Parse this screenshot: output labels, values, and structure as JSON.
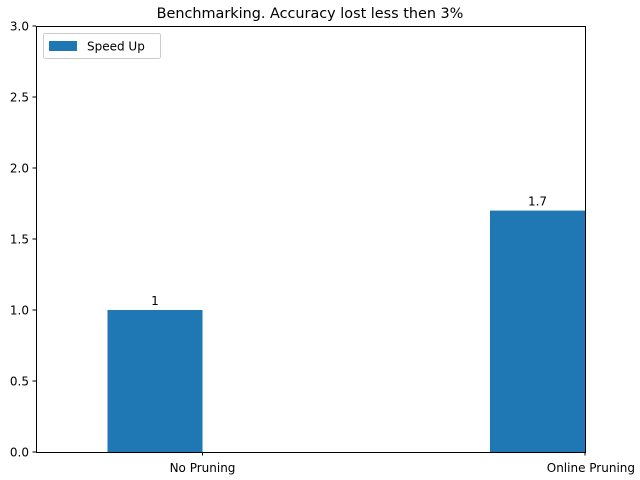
{
  "chart_data": {
    "type": "bar",
    "title": "Benchmarking. Accuracy lost less then 3%",
    "xlabel": "",
    "ylabel": "",
    "categories": [
      "No Pruning",
      "Online Pruning"
    ],
    "series": [
      {
        "name": "Speed Up",
        "values": [
          1,
          1.7
        ],
        "color": "#1f77b4"
      }
    ],
    "data_labels": [
      "1",
      "1.7"
    ],
    "ylim": [
      0,
      3.0
    ],
    "yticks": [
      "0.0",
      "0.5",
      "1.0",
      "1.5",
      "2.0",
      "2.5",
      "3.0"
    ],
    "grid": false,
    "legend_position": "top-left"
  }
}
